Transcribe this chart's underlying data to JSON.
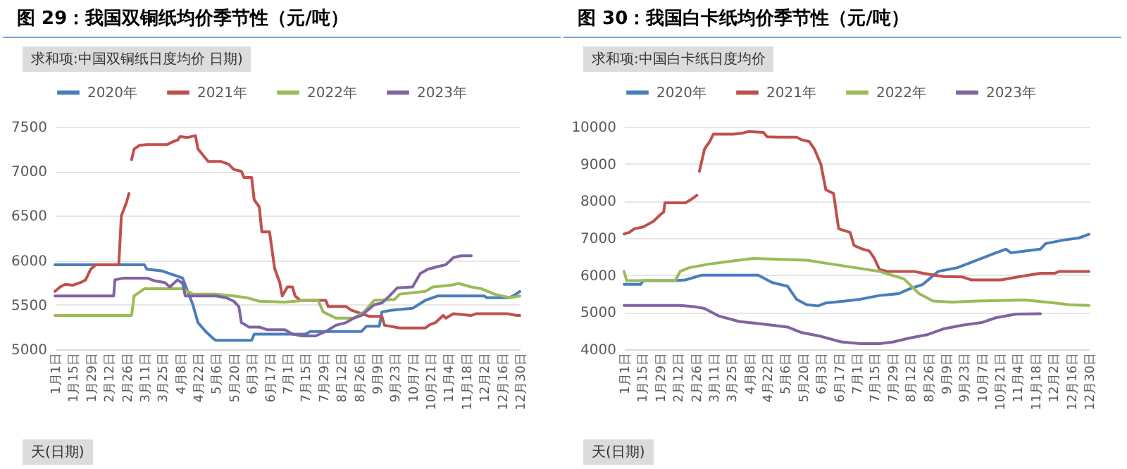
{
  "chart_data": [
    {
      "type": "line",
      "title": "图 29：我国双铜纸均价季节性（元/吨）",
      "annotations": [
        "求和项:中国双铜纸日度均价 日期)",
        "天(日期)"
      ],
      "xlim": [
        "--01-01",
        "--12-30"
      ],
      "xticks": [
        {
          "value": "--01-01",
          "label": "1月1日"
        },
        {
          "value": "--01-15",
          "label": "1月15日"
        },
        {
          "value": "--01-29",
          "label": "1月29日"
        },
        {
          "value": "--02-12",
          "label": "2月12日"
        },
        {
          "value": "--02-26",
          "label": "2月26日"
        },
        {
          "value": "--03-11",
          "label": "3月11日"
        },
        {
          "value": "--03-25",
          "label": "3月25日"
        },
        {
          "value": "--04-08",
          "label": "4月8日"
        },
        {
          "value": "--04-22",
          "label": "4月22日"
        },
        {
          "value": "--05-06",
          "label": "5月6日"
        },
        {
          "value": "--05-20",
          "label": "5月20日"
        },
        {
          "value": "--06-03",
          "label": "6月3日"
        },
        {
          "value": "--06-17",
          "label": "6月17日"
        },
        {
          "value": "--07-01",
          "label": "7月1日"
        },
        {
          "value": "--07-15",
          "label": "7月15日"
        },
        {
          "value": "--07-29",
          "label": "7月29日"
        },
        {
          "value": "--08-12",
          "label": "8月12日"
        },
        {
          "value": "--08-26",
          "label": "8月26日"
        },
        {
          "value": "--09-09",
          "label": "9月9日"
        },
        {
          "value": "--09-23",
          "label": "9月23日"
        },
        {
          "value": "--10-07",
          "label": "10月7日"
        },
        {
          "value": "--10-21",
          "label": "10月21日"
        },
        {
          "value": "--11-04",
          "label": "11月4日"
        },
        {
          "value": "--11-18",
          "label": "11月18日"
        },
        {
          "value": "--12-02",
          "label": "12月2日"
        },
        {
          "value": "--12-16",
          "label": "12月16日"
        },
        {
          "value": "--12-30",
          "label": "12月30日"
        }
      ],
      "ylim": [
        5000,
        7500
      ],
      "yticks": [
        5000,
        5500,
        6000,
        6500,
        7000,
        7500
      ],
      "grid": "y",
      "legend": "top",
      "series": [
        {
          "name": "2020年",
          "color": "#4a7ebb",
          "x": [
            "--01-01",
            "--03-11",
            "--03-13",
            "--03-25",
            "--03-31",
            "--04-10",
            "--04-14",
            "--04-18",
            "--04-22",
            "--04-28",
            "--05-04",
            "--05-06",
            "--06-03",
            "--06-05",
            "--07-15",
            "--07-19",
            "--08-28",
            "--09-01",
            "--09-11",
            "--09-13",
            "--09-21",
            "--10-07",
            "--10-17",
            "--10-27",
            "--12-02",
            "--12-04",
            "--12-22",
            "--12-26",
            "--12-30"
          ],
          "values": [
            5950,
            5950,
            5900,
            5880,
            5850,
            5800,
            5650,
            5500,
            5300,
            5200,
            5120,
            5100,
            5100,
            5170,
            5170,
            5200,
            5200,
            5260,
            5260,
            5420,
            5440,
            5460,
            5550,
            5600,
            5600,
            5580,
            5580,
            5610,
            5650
          ]
        },
        {
          "name": "2021年",
          "color": "#c0504d",
          "x": [
            "--01-01",
            "--01-05",
            "--01-09",
            "--01-15",
            "--01-21",
            "--01-25",
            "--01-29",
            "--02-02",
            "--02-20",
            "--02-22",
            "--02-26",
            "--02-28",
            "--02-29",
            "--03-01",
            "--03-03",
            "--03-07",
            "--03-13",
            "--03-29",
            "--04-02",
            "--04-06",
            "--04-08",
            "--04-14",
            "--04-20",
            "--04-22",
            "--04-26",
            "--04-30",
            "--05-10",
            "--05-16",
            "--05-20",
            "--05-26",
            "--05-28",
            "--06-03",
            "--06-05",
            "--06-09",
            "--06-11",
            "--06-17",
            "--06-21",
            "--06-25",
            "--06-27",
            "--07-01",
            "--07-05",
            "--07-07",
            "--07-11",
            "--07-31",
            "--08-02",
            "--08-16",
            "--08-20",
            "--08-28",
            "--09-03",
            "--09-13",
            "--09-15",
            "--09-27",
            "--10-17",
            "--10-21",
            "--10-25",
            "--10-31",
            "--11-02",
            "--11-08",
            "--11-22",
            "--11-26",
            "--12-20",
            "--12-28",
            "--12-30"
          ],
          "values": [
            5650,
            5700,
            5730,
            5720,
            5750,
            5780,
            5900,
            5950,
            5950,
            6500,
            6650,
            6750,
            null,
            7130,
            7250,
            7290,
            7300,
            7300,
            7330,
            7350,
            7390,
            7380,
            7400,
            7250,
            7180,
            7110,
            7110,
            7080,
            7020,
            7000,
            6930,
            6930,
            6680,
            6600,
            6320,
            6320,
            5910,
            5750,
            5600,
            5700,
            5700,
            5600,
            5550,
            5550,
            5480,
            5480,
            5440,
            5400,
            5370,
            5370,
            5270,
            5240,
            5240,
            5280,
            5300,
            5380,
            5350,
            5400,
            5380,
            5400,
            5400,
            5380,
            5380
          ]
        },
        {
          "name": "2022年",
          "color": "#9bbb59",
          "x": [
            "--01-01",
            "--03-01",
            "--03-03",
            "--03-07",
            "--03-11",
            "--04-10",
            "--04-18",
            "--05-06",
            "--05-20",
            "--05-30",
            "--06-09",
            "--06-29",
            "--07-15",
            "--07-25",
            "--07-29",
            "--08-08",
            "--08-22",
            "--08-30",
            "--09-07",
            "--09-23",
            "--09-27",
            "--10-17",
            "--10-23",
            "--11-06",
            "--11-12",
            "--11-22",
            "--11-30",
            "--12-10",
            "--12-16",
            "--12-22",
            "--12-30"
          ],
          "values": [
            5380,
            5380,
            5600,
            5640,
            5680,
            5680,
            5620,
            5620,
            5600,
            5580,
            5540,
            5530,
            5550,
            5550,
            5420,
            5350,
            5350,
            5420,
            5550,
            5560,
            5620,
            5650,
            5700,
            5720,
            5740,
            5700,
            5680,
            5620,
            5600,
            5580,
            5600
          ]
        },
        {
          "name": "2023年",
          "color": "#8064a2",
          "x": [
            "--01-01",
            "--02-16",
            "--02-17",
            "--02-24",
            "--03-13",
            "--03-19",
            "--03-27",
            "--03-31",
            "--04-06",
            "--04-10",
            "--04-12",
            "--05-06",
            "--05-14",
            "--05-20",
            "--05-24",
            "--05-26",
            "--06-01",
            "--06-09",
            "--06-15",
            "--06-29",
            "--07-05",
            "--07-13",
            "--07-23",
            "--07-31",
            "--08-08",
            "--08-16",
            "--08-22",
            "--08-28",
            "--09-07",
            "--09-13",
            "--09-19",
            "--09-25",
            "--10-07",
            "--10-13",
            "--10-19",
            "--10-27",
            "--11-02",
            "--11-08",
            "--11-14",
            "--11-22"
          ],
          "values": [
            5600,
            5600,
            5780,
            5800,
            5800,
            5770,
            5750,
            5700,
            5780,
            5740,
            5600,
            5600,
            5580,
            5540,
            5480,
            5300,
            5250,
            5250,
            5220,
            5220,
            5170,
            5150,
            5150,
            5200,
            5270,
            5300,
            5350,
            5380,
            5500,
            5520,
            5600,
            5690,
            5700,
            5850,
            5900,
            5930,
            5950,
            6030,
            6050,
            6050
          ]
        }
      ]
    },
    {
      "type": "line",
      "title": "图 30：我国白卡纸均价季节性（元/吨）",
      "annotations": [
        "求和项:中国白卡纸日度均价",
        "天(日期)"
      ],
      "xlim": [
        "--01-01",
        "--12-30"
      ],
      "xticks": [
        {
          "value": "--01-01",
          "label": "1月1日"
        },
        {
          "value": "--01-15",
          "label": "1月15日"
        },
        {
          "value": "--01-29",
          "label": "1月29日"
        },
        {
          "value": "--02-12",
          "label": "2月12日"
        },
        {
          "value": "--02-26",
          "label": "2月26日"
        },
        {
          "value": "--03-11",
          "label": "3月11日"
        },
        {
          "value": "--03-25",
          "label": "3月25日"
        },
        {
          "value": "--04-08",
          "label": "4月8日"
        },
        {
          "value": "--04-22",
          "label": "4月22日"
        },
        {
          "value": "--05-06",
          "label": "5月6日"
        },
        {
          "value": "--05-20",
          "label": "5月20日"
        },
        {
          "value": "--06-03",
          "label": "6月3日"
        },
        {
          "value": "--06-17",
          "label": "6月17日"
        },
        {
          "value": "--07-01",
          "label": "7月1日"
        },
        {
          "value": "--07-15",
          "label": "7月15日"
        },
        {
          "value": "--07-29",
          "label": "7月29日"
        },
        {
          "value": "--08-12",
          "label": "8月12日"
        },
        {
          "value": "--08-26",
          "label": "8月26日"
        },
        {
          "value": "--09-09",
          "label": "9月9日"
        },
        {
          "value": "--09-23",
          "label": "9月23日"
        },
        {
          "value": "--10-07",
          "label": "10月7日"
        },
        {
          "value": "--10-21",
          "label": "10月21日"
        },
        {
          "value": "--11-04",
          "label": "11月4日"
        },
        {
          "value": "--11-18",
          "label": "11月18日"
        },
        {
          "value": "--12-02",
          "label": "12月2日"
        },
        {
          "value": "--12-16",
          "label": "12月16日"
        },
        {
          "value": "--12-30",
          "label": "12月30日"
        }
      ],
      "ylim": [
        4000,
        10000
      ],
      "yticks": [
        4000,
        5000,
        6000,
        7000,
        8000,
        9000,
        10000
      ],
      "grid": "y",
      "legend": "top",
      "series": [
        {
          "name": "2020年",
          "color": "#4a7ebb",
          "x": [
            "--01-01",
            "--01-14",
            "--01-16",
            "--02-10",
            "--02-18",
            "--03-02",
            "--04-15",
            "--04-26",
            "--05-08",
            "--05-15",
            "--05-23",
            "--06-01",
            "--06-07",
            "--06-22",
            "--07-04",
            "--07-19",
            "--08-03",
            "--08-11",
            "--08-22",
            "--09-03",
            "--09-18",
            "--10-03",
            "--10-18",
            "--10-26",
            "--10-30",
            "--11-10",
            "--11-22",
            "--11-26",
            "--12-11",
            "--12-22",
            "--12-30"
          ],
          "values": [
            5750,
            5750,
            5850,
            5850,
            5870,
            6000,
            6000,
            5800,
            5700,
            5350,
            5200,
            5170,
            5250,
            5300,
            5350,
            5450,
            5500,
            5620,
            5750,
            6100,
            6200,
            6400,
            6600,
            6700,
            6600,
            6650,
            6700,
            6850,
            6950,
            7000,
            7100
          ]
        },
        {
          "name": "2021年",
          "color": "#c0504d",
          "x": [
            "--01-01",
            "--01-05",
            "--01-09",
            "--01-16",
            "--01-24",
            "--01-30",
            "--02-01",
            "--02-02",
            "--02-18",
            "--02-23",
            "--02-27",
            "--02-28",
            "--02-29",
            "--03-04",
            "--03-08",
            "--03-11",
            "--03-27",
            "--04-03",
            "--04-07",
            "--04-19",
            "--04-22",
            "--04-30",
            "--05-15",
            "--05-19",
            "--05-25",
            "--05-29",
            "--06-03",
            "--06-07",
            "--06-13",
            "--06-17",
            "--06-26",
            "--06-29",
            "--07-06",
            "--07-11",
            "--07-15",
            "--07-19",
            "--07-25",
            "--08-15",
            "--08-22",
            "--09-07",
            "--09-22",
            "--09-29",
            "--10-22",
            "--11-06",
            "--11-22",
            "--12-03",
            "--12-07",
            "--12-30"
          ],
          "values": [
            7110,
            7150,
            7250,
            7300,
            7450,
            7650,
            7700,
            7950,
            7950,
            8050,
            8150,
            null,
            8800,
            9400,
            9600,
            9800,
            9800,
            9830,
            9870,
            9850,
            9730,
            9720,
            9720,
            9650,
            9600,
            9400,
            9000,
            8300,
            8200,
            7250,
            7150,
            6800,
            6700,
            6650,
            6450,
            6150,
            6100,
            6100,
            6050,
            5960,
            5950,
            5870,
            5870,
            5960,
            6050,
            6050,
            6100,
            6100
          ]
        },
        {
          "name": "2022年",
          "color": "#9bbb59",
          "x": [
            "--01-01",
            "--01-03",
            "--02-10",
            "--02-14",
            "--02-21",
            "--03-08",
            "--03-19",
            "--04-11",
            "--05-23",
            "--06-11",
            "--06-30",
            "--07-19",
            "--08-07",
            "--08-19",
            "--08-30",
            "--09-14",
            "--10-03",
            "--11-10",
            "--12-03",
            "--12-15",
            "--12-30"
          ],
          "values": [
            6100,
            5850,
            5850,
            6100,
            6200,
            6300,
            6350,
            6450,
            6400,
            6300,
            6200,
            6100,
            5900,
            5500,
            5300,
            5270,
            5300,
            5330,
            5250,
            5200,
            5180
          ]
        },
        {
          "name": "2023年",
          "color": "#8064a2",
          "x": [
            "--01-01",
            "--02-14",
            "--02-25",
            "--03-04",
            "--03-15",
            "--03-31",
            "--04-19",
            "--05-08",
            "--05-19",
            "--06-03",
            "--06-19",
            "--07-04",
            "--07-19",
            "--07-30",
            "--08-11",
            "--08-26",
            "--09-07",
            "--09-22",
            "--10-07",
            "--10-18",
            "--11-03",
            "--11-22"
          ],
          "values": [
            5180,
            5180,
            5150,
            5100,
            4900,
            4750,
            4680,
            4600,
            4450,
            4350,
            4200,
            4150,
            4150,
            4200,
            4300,
            4400,
            4550,
            4650,
            4720,
            4850,
            4950,
            4960
          ]
        }
      ]
    }
  ]
}
